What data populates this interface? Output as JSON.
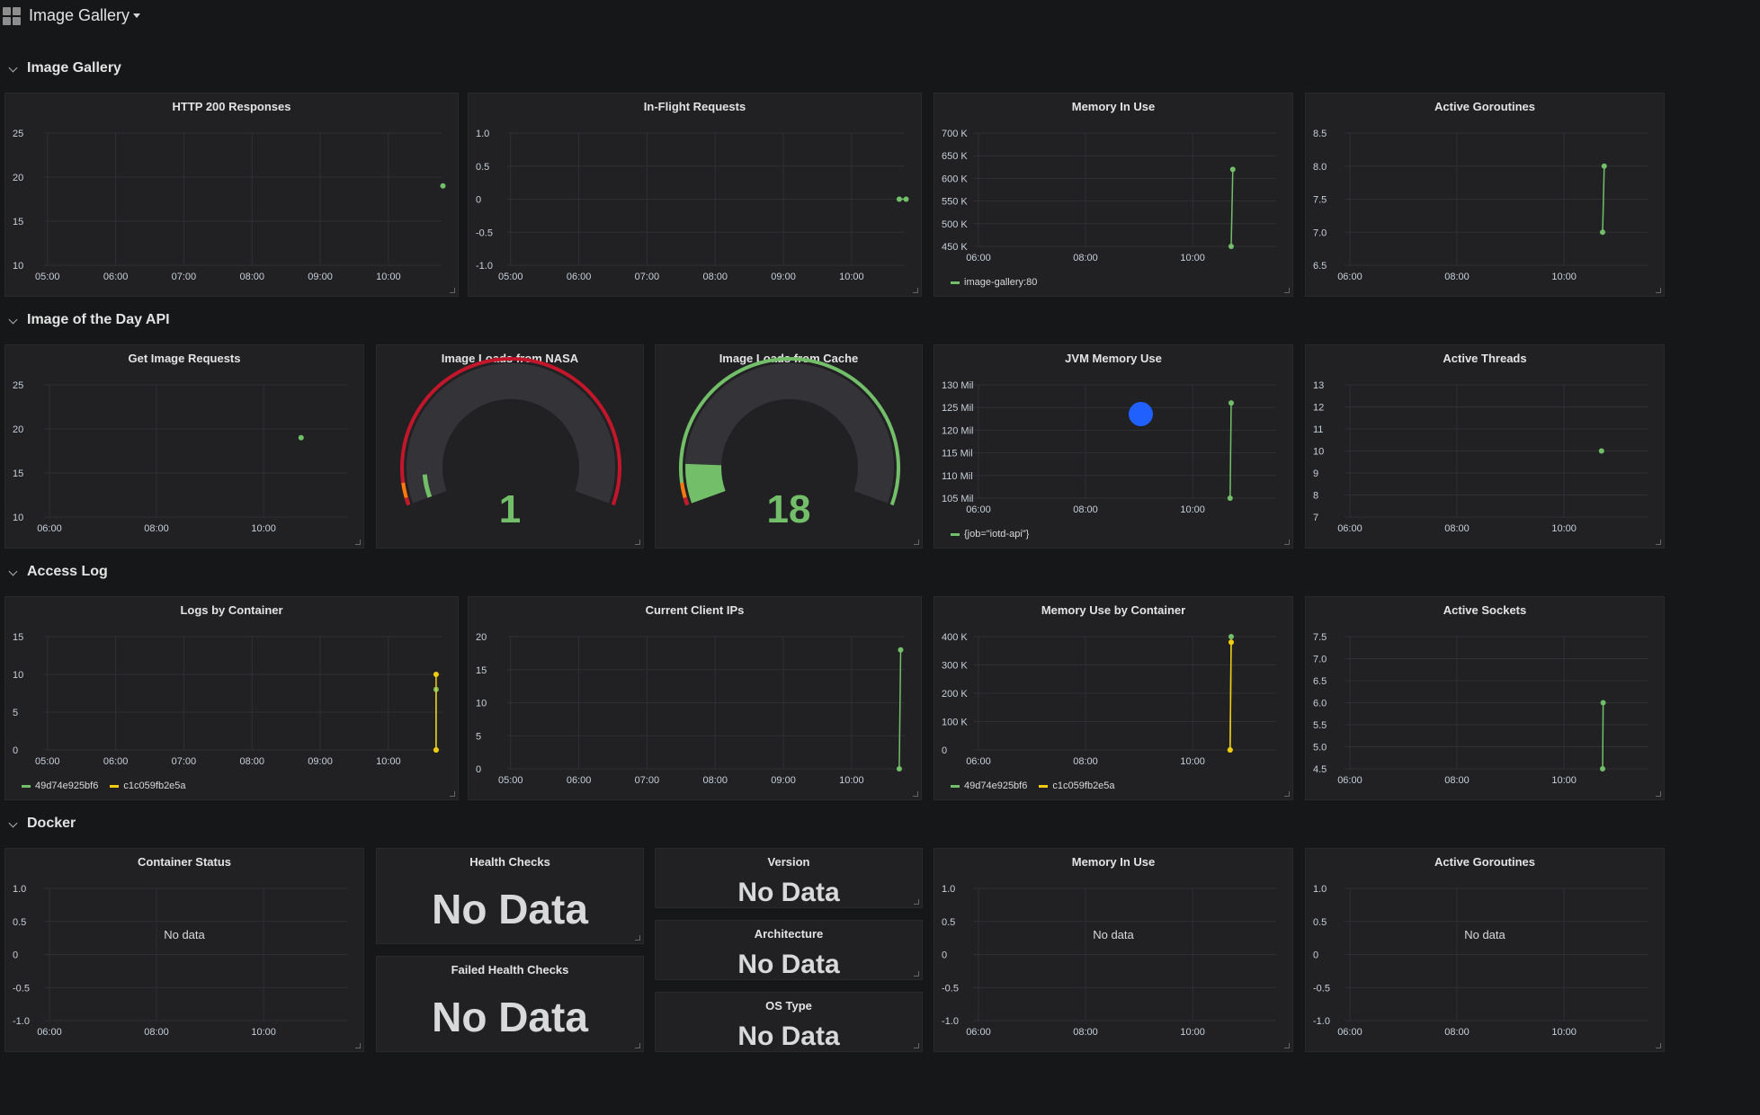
{
  "header": {
    "title": "Image Gallery"
  },
  "rows": [
    {
      "title": "Image Gallery"
    },
    {
      "title": "Image of the Day API"
    },
    {
      "title": "Access Log"
    },
    {
      "title": "Docker"
    }
  ],
  "colors": {
    "green": "#73bf69",
    "yellow": "#f2cc0c",
    "red": "#c4162a",
    "orange": "#ff780a",
    "blue": "#1f60ff",
    "background": "#161719",
    "panel": "#212124"
  },
  "panels": {
    "http200": {
      "title": "HTTP 200 Responses"
    },
    "inflight": {
      "title": "In-Flight Requests"
    },
    "mem1": {
      "title": "Memory In Use",
      "legend": "image-gallery:80"
    },
    "gorout1": {
      "title": "Active Goroutines"
    },
    "getimg": {
      "title": "Get Image Requests"
    },
    "nasa": {
      "title": "Image Loads from NASA",
      "value": "1"
    },
    "cache": {
      "title": "Image Loads from Cache",
      "value": "18"
    },
    "jvm": {
      "title": "JVM Memory Use",
      "legend": "{job=\"iotd-api\"}"
    },
    "threads": {
      "title": "Active Threads"
    },
    "logs": {
      "title": "Logs by Container",
      "legend": [
        "49d74e925bf6",
        "c1c059fb2e5a"
      ]
    },
    "ips": {
      "title": "Current Client IPs"
    },
    "memcont": {
      "title": "Memory Use by Container",
      "legend": [
        "49d74e925bf6",
        "c1c059fb2e5a"
      ]
    },
    "sockets": {
      "title": "Active Sockets"
    },
    "status": {
      "title": "Container Status",
      "nodata": "No data"
    },
    "health": {
      "title": "Health Checks",
      "value": "No Data"
    },
    "failed": {
      "title": "Failed Health Checks",
      "value": "No Data"
    },
    "version": {
      "title": "Version",
      "value": "No Data"
    },
    "arch": {
      "title": "Architecture",
      "value": "No Data"
    },
    "ostype": {
      "title": "OS Type",
      "value": "No Data"
    },
    "mem2": {
      "title": "Memory In Use",
      "nodata": "No data"
    },
    "gorout2": {
      "title": "Active Goroutines",
      "nodata": "No data"
    }
  },
  "chart_data": [
    {
      "id": "http200",
      "type": "line",
      "title": "HTTP 200 Responses",
      "x_ticks": [
        "05:00",
        "06:00",
        "07:00",
        "08:00",
        "09:00",
        "10:00"
      ],
      "y_ticks": [
        "25",
        "20",
        "15",
        "10"
      ],
      "ylim": [
        10,
        25
      ],
      "series": [
        {
          "color": "#73bf69",
          "points": [
            [
              10.8,
              19
            ]
          ]
        }
      ]
    },
    {
      "id": "inflight",
      "type": "line",
      "title": "In-Flight Requests",
      "x_ticks": [
        "05:00",
        "06:00",
        "07:00",
        "08:00",
        "09:00",
        "10:00"
      ],
      "y_ticks": [
        "1.0",
        "0.5",
        "0",
        "-0.5",
        "-1.0"
      ],
      "ylim": [
        -1,
        1
      ],
      "series": [
        {
          "color": "#73bf69",
          "points": [
            [
              10.7,
              0
            ],
            [
              10.8,
              0
            ]
          ]
        }
      ]
    },
    {
      "id": "mem1",
      "type": "line",
      "title": "Memory In Use",
      "x_ticks": [
        "06:00",
        "08:00",
        "10:00"
      ],
      "y_ticks": [
        "700 K",
        "650 K",
        "600 K",
        "550 K",
        "500 K",
        "450 K"
      ],
      "ylim": [
        450000,
        700000
      ],
      "series": [
        {
          "name": "image-gallery:80",
          "color": "#73bf69",
          "points": [
            [
              10.72,
              450000
            ],
            [
              10.75,
              620000
            ]
          ]
        }
      ]
    },
    {
      "id": "gorout1",
      "type": "line",
      "title": "Active Goroutines",
      "x_ticks": [
        "06:00",
        "08:00",
        "10:00"
      ],
      "y_ticks": [
        "8.5",
        "8.0",
        "7.5",
        "7.0",
        "6.5"
      ],
      "ylim": [
        6.5,
        8.5
      ],
      "series": [
        {
          "color": "#73bf69",
          "points": [
            [
              10.72,
              7
            ],
            [
              10.75,
              8
            ]
          ]
        }
      ]
    },
    {
      "id": "getimg",
      "type": "line",
      "title": "Get Image Requests",
      "x_ticks": [
        "06:00",
        "08:00",
        "10:00"
      ],
      "y_ticks": [
        "25",
        "20",
        "15",
        "10"
      ],
      "ylim": [
        10,
        25
      ],
      "series": [
        {
          "color": "#73bf69",
          "points": [
            [
              10.7,
              19
            ]
          ]
        }
      ]
    },
    {
      "id": "jvm",
      "type": "line",
      "title": "JVM Memory Use",
      "x_ticks": [
        "06:00",
        "08:00",
        "10:00"
      ],
      "y_ticks": [
        "130 Mil",
        "125 Mil",
        "120 Mil",
        "115 Mil",
        "110 Mil",
        "105 Mil"
      ],
      "ylim": [
        105000000,
        130000000
      ],
      "series": [
        {
          "name": "{job=\"iotd-api\"}",
          "color": "#73bf69",
          "points": [
            [
              10.7,
              105000000
            ],
            [
              10.72,
              126000000
            ]
          ]
        }
      ]
    },
    {
      "id": "threads",
      "type": "line",
      "title": "Active Threads",
      "x_ticks": [
        "06:00",
        "08:00",
        "10:00"
      ],
      "y_ticks": [
        "13",
        "12",
        "11",
        "10",
        "9",
        "8",
        "7"
      ],
      "ylim": [
        7,
        13
      ],
      "series": [
        {
          "color": "#73bf69",
          "points": [
            [
              10.7,
              10
            ]
          ]
        }
      ]
    },
    {
      "id": "logs",
      "type": "line",
      "title": "Logs by Container",
      "x_ticks": [
        "05:00",
        "06:00",
        "07:00",
        "08:00",
        "09:00",
        "10:00"
      ],
      "y_ticks": [
        "15",
        "10",
        "5",
        "0"
      ],
      "ylim": [
        0,
        15
      ],
      "series": [
        {
          "name": "49d74e925bf6",
          "color": "#73bf69",
          "points": [
            [
              10.7,
              0
            ],
            [
              10.7,
              8
            ]
          ]
        },
        {
          "name": "c1c059fb2e5a",
          "color": "#f2cc0c",
          "points": [
            [
              10.7,
              0
            ],
            [
              10.7,
              10
            ]
          ]
        }
      ]
    },
    {
      "id": "ips",
      "type": "line",
      "title": "Current Client IPs",
      "x_ticks": [
        "05:00",
        "06:00",
        "07:00",
        "08:00",
        "09:00",
        "10:00"
      ],
      "y_ticks": [
        "20",
        "15",
        "10",
        "5",
        "0"
      ],
      "ylim": [
        0,
        20
      ],
      "series": [
        {
          "color": "#73bf69",
          "points": [
            [
              10.7,
              0
            ],
            [
              10.72,
              18
            ]
          ]
        }
      ]
    },
    {
      "id": "memcont",
      "type": "line",
      "title": "Memory Use by Container",
      "x_ticks": [
        "06:00",
        "08:00",
        "10:00"
      ],
      "y_ticks": [
        "400 K",
        "300 K",
        "200 K",
        "100 K",
        "0"
      ],
      "ylim": [
        0,
        400000
      ],
      "series": [
        {
          "name": "49d74e925bf6",
          "color": "#73bf69",
          "points": [
            [
              10.7,
              0
            ],
            [
              10.72,
              400000
            ]
          ]
        },
        {
          "name": "c1c059fb2e5a",
          "color": "#f2cc0c",
          "points": [
            [
              10.7,
              0
            ],
            [
              10.72,
              380000
            ]
          ]
        }
      ]
    },
    {
      "id": "sockets",
      "type": "line",
      "title": "Active Sockets",
      "x_ticks": [
        "06:00",
        "08:00",
        "10:00"
      ],
      "y_ticks": [
        "7.5",
        "7.0",
        "6.5",
        "6.0",
        "5.5",
        "5.0",
        "4.5"
      ],
      "ylim": [
        4.5,
        7.5
      ],
      "series": [
        {
          "color": "#73bf69",
          "points": [
            [
              10.72,
              4.5
            ],
            [
              10.73,
              6
            ]
          ]
        }
      ]
    },
    {
      "id": "status",
      "type": "line",
      "title": "Container Status",
      "x_ticks": [
        "06:00",
        "08:00",
        "10:00"
      ],
      "y_ticks": [
        "1.0",
        "0.5",
        "0",
        "-0.5",
        "-1.0"
      ],
      "ylim": [
        -1,
        1
      ],
      "series": []
    },
    {
      "id": "mem2",
      "type": "line",
      "title": "Memory In Use",
      "x_ticks": [
        "06:00",
        "08:00",
        "10:00"
      ],
      "y_ticks": [
        "1.0",
        "0.5",
        "0",
        "-0.5",
        "-1.0"
      ],
      "ylim": [
        -1,
        1
      ],
      "series": []
    },
    {
      "id": "gorout2",
      "type": "line",
      "title": "Active Goroutines",
      "x_ticks": [
        "06:00",
        "08:00",
        "10:00"
      ],
      "y_ticks": [
        "1.0",
        "0.5",
        "0",
        "-0.5",
        "-1.0"
      ],
      "ylim": [
        -1,
        1
      ],
      "series": []
    },
    {
      "id": "nasa",
      "type": "gauge",
      "title": "Image Loads from NASA",
      "value": 1
    },
    {
      "id": "cache",
      "type": "gauge",
      "title": "Image Loads from Cache",
      "value": 18
    }
  ]
}
